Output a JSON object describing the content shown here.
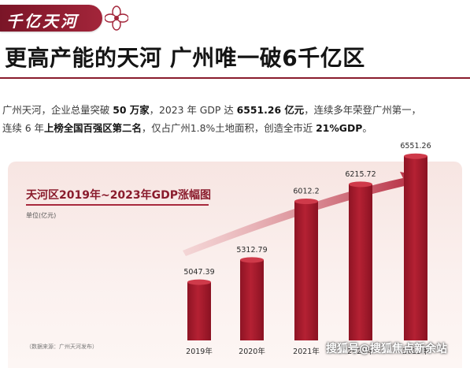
{
  "header": {
    "tag": "千亿天河",
    "headline": "更高产能的天河 广州唯一破6千亿区"
  },
  "paragraph": {
    "l1_a": "广州天河，企业总量突破 ",
    "l1_b": "50 万家",
    "l1_c": "，2023 年 GDP 达 ",
    "l1_d": "6551.26 亿元",
    "l1_e": "，连续多年荣登广州第一，",
    "l2_a": "连续 6 年",
    "l2_b": "上榜全国百强区第二名",
    "l2_c": "，仅占广州1.8%土地面积，创造全市近 ",
    "l2_d": "21%GDP",
    "l2_e": "。"
  },
  "chart_data": {
    "type": "bar",
    "title": "天河区2019年~2023年GDP涨幅图",
    "unit": "单位(亿元)",
    "categories": [
      "2019年",
      "2020年",
      "2021年",
      "2022年",
      "2023年"
    ],
    "values": [
      5047.39,
      5312.79,
      6012.2,
      6215.72,
      6551.26
    ],
    "value_labels": [
      "5047.39",
      "5312.79",
      "6012.2",
      "6215.72",
      "6551.26"
    ],
    "source": "（数据来源：广州天河发布）",
    "colors": {
      "bar": "#b01e30",
      "bar_top": "#cf3a4a",
      "arrow": "#b3243a"
    }
  },
  "watermark": "搜狐号@搜狐焦点新余站"
}
